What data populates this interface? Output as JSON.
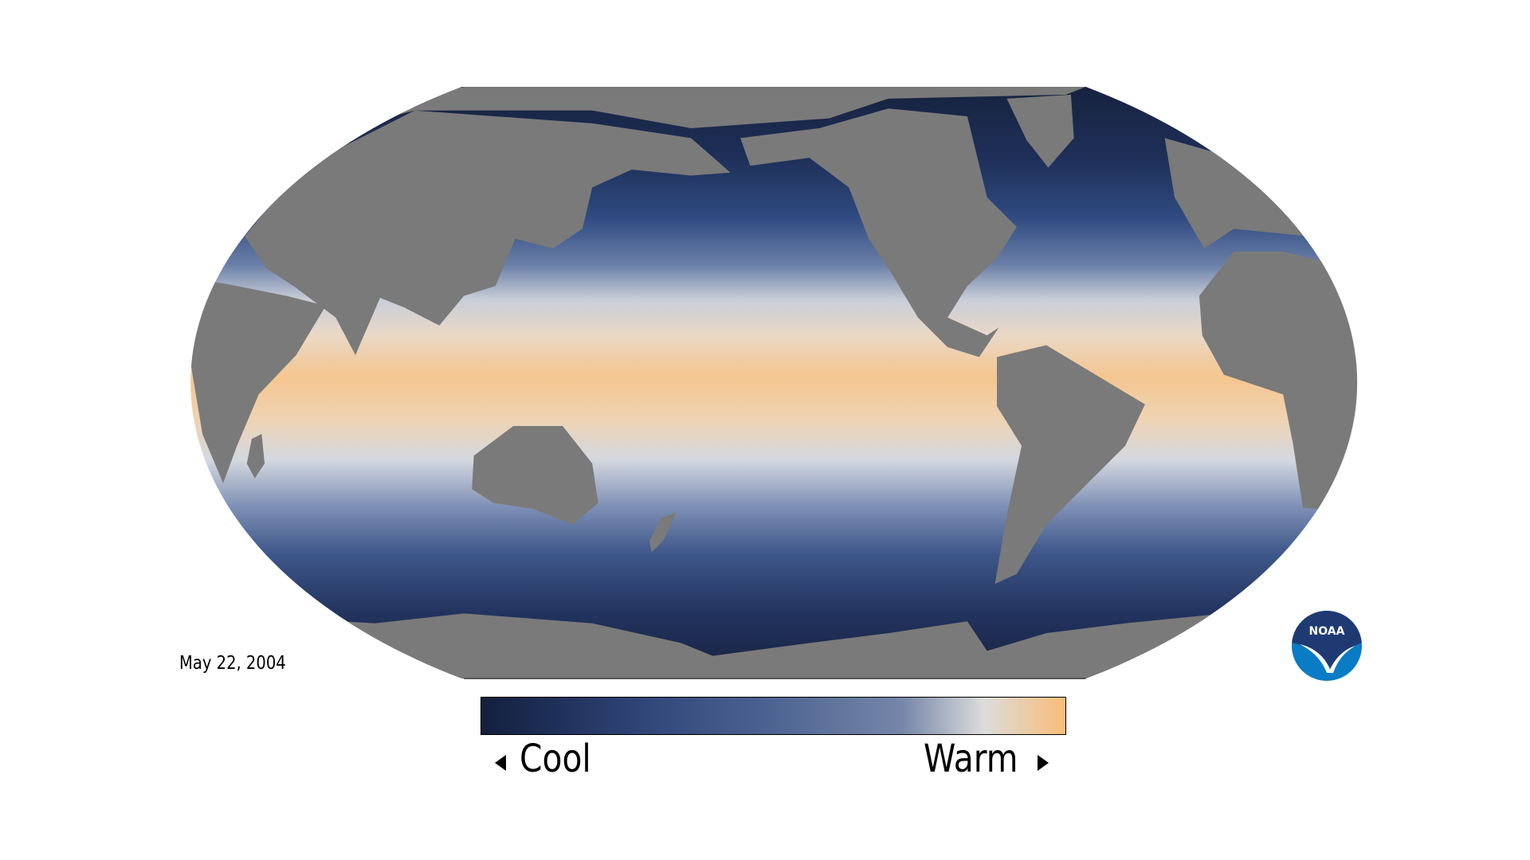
{
  "map": {
    "date": "May 22, 2004",
    "projection": "Robinson (Pacific-centered)",
    "variable": "sea surface temperature",
    "land_color": "#7a7a7a",
    "background_color": "#ffffff"
  },
  "colorbar": {
    "low_label": "Cool",
    "high_label": "Warm",
    "colors": [
      "#141f3d",
      "#1e2f58",
      "#33497c",
      "#4a6190",
      "#7586a8",
      "#dcdcdc",
      "#f8bd78"
    ],
    "low_arrow_icon": "triangle-left",
    "high_arrow_icon": "triangle-right"
  },
  "logo": {
    "text": "NOAA",
    "colors": {
      "top": "#1f3a73",
      "bottom": "#0a7cc5"
    }
  }
}
